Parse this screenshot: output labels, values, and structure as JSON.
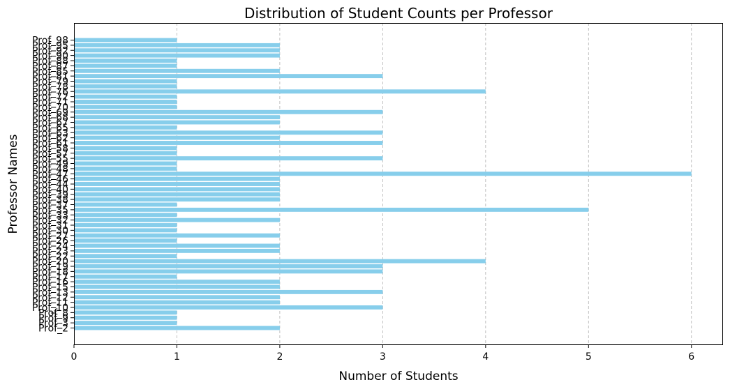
{
  "chart_data": {
    "type": "bar",
    "orientation": "horizontal",
    "title": "Distribution of Student Counts per Professor",
    "xlabel": "Number of Students",
    "ylabel": "Professor Names",
    "xlim": [
      0,
      6.3
    ],
    "xticks": [
      0,
      1,
      2,
      3,
      4,
      5,
      6
    ],
    "grid": "x-dashed",
    "colors": {
      "bar": "#87CEEB",
      "grid": "#b0b0b0",
      "axis": "#000000"
    },
    "categories": [
      "Prof_2",
      "Prof_3",
      "Prof_9",
      "Prof_8",
      "Prof_10",
      "Prof_11",
      "Prof_12",
      "Prof_13",
      "Prof_15",
      "Prof_16",
      "Prof_17",
      "Prof_18",
      "Prof_19",
      "Prof_20",
      "Prof_22",
      "Prof_23",
      "Prof_24",
      "Prof_26",
      "Prof_27",
      "Prof_30",
      "Prof_31",
      "Prof_32",
      "Prof_33",
      "Prof_35",
      "Prof_37",
      "Prof_38",
      "Prof_39",
      "Prof_40",
      "Prof_44",
      "Prof_46",
      "Prof_47",
      "Prof_48",
      "Prof_49",
      "Prof_55",
      "Prof_57",
      "Prof_58",
      "Prof_61",
      "Prof_62",
      "Prof_63",
      "Prof_65",
      "Prof_67",
      "Prof_68",
      "Prof_69",
      "Prof_70",
      "Prof_71",
      "Prof_72",
      "Prof_76",
      "Prof_78",
      "Prof_79",
      "Prof_81",
      "Prof_85",
      "Prof_87",
      "Prof_88",
      "Prof_90",
      "Prof_92",
      "Prof_95",
      "Prof_98"
    ],
    "values": [
      2,
      1,
      1,
      1,
      3,
      2,
      2,
      3,
      2,
      2,
      1,
      3,
      3,
      4,
      1,
      2,
      2,
      1,
      2,
      1,
      1,
      2,
      1,
      5,
      1,
      2,
      2,
      2,
      2,
      2,
      6,
      1,
      1,
      3,
      1,
      1,
      3,
      2,
      3,
      1,
      2,
      2,
      3,
      1,
      1,
      1,
      4,
      1,
      1,
      3,
      2,
      1,
      1,
      2,
      2,
      2,
      1
    ]
  }
}
